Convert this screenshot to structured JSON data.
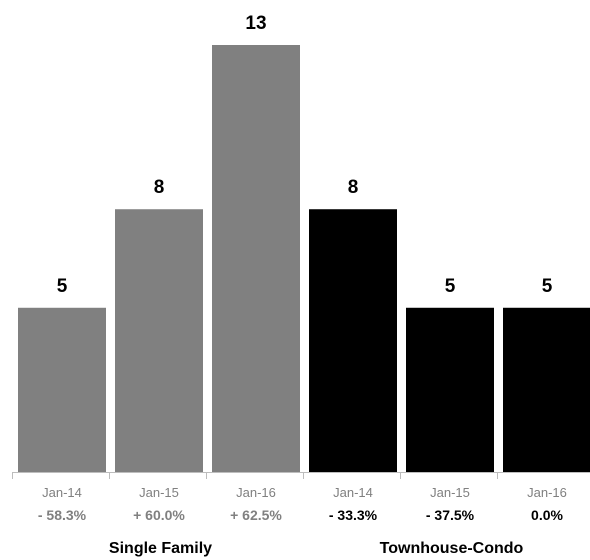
{
  "chart_data": {
    "type": "bar",
    "ylim": [
      0,
      13
    ],
    "grid": false,
    "groups": [
      {
        "name": "Single Family",
        "color": "#808080",
        "pct_color": "#808080",
        "date_color": "#808080",
        "bars": [
          {
            "date": "Jan-14",
            "value": 5,
            "value_label": "5",
            "pct": "- 58.3%"
          },
          {
            "date": "Jan-15",
            "value": 8,
            "value_label": "8",
            "pct": "+ 60.0%"
          },
          {
            "date": "Jan-16",
            "value": 13,
            "value_label": "13",
            "pct": "+ 62.5%"
          }
        ]
      },
      {
        "name": "Townhouse-Condo",
        "color": "#000000",
        "pct_color": "#000000",
        "date_color": "#808080",
        "bars": [
          {
            "date": "Jan-14",
            "value": 8,
            "value_label": "8",
            "pct": "- 33.3%"
          },
          {
            "date": "Jan-15",
            "value": 5,
            "value_label": "5",
            "pct": "- 37.5%"
          },
          {
            "date": "Jan-16",
            "value": 5,
            "value_label": "5",
            "pct": "0.0%"
          }
        ]
      }
    ]
  }
}
